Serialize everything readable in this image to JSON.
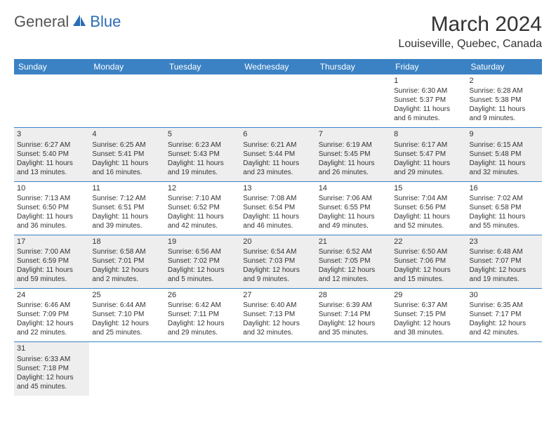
{
  "logo": {
    "part1": "General",
    "part2": "Blue"
  },
  "title": "March 2024",
  "location": "Louiseville, Quebec, Canada",
  "colors": {
    "header_bg": "#3b82c4",
    "header_text": "#ffffff",
    "shade_bg": "#eeeeee",
    "border": "#3b82c4",
    "brand_blue": "#2a6db5",
    "text": "#333333"
  },
  "weekdays": [
    "Sunday",
    "Monday",
    "Tuesday",
    "Wednesday",
    "Thursday",
    "Friday",
    "Saturday"
  ],
  "weeks": [
    {
      "shade": false,
      "days": [
        null,
        null,
        null,
        null,
        null,
        {
          "n": "1",
          "sunrise": "Sunrise: 6:30 AM",
          "sunset": "Sunset: 5:37 PM",
          "d1": "Daylight: 11 hours",
          "d2": "and 6 minutes."
        },
        {
          "n": "2",
          "sunrise": "Sunrise: 6:28 AM",
          "sunset": "Sunset: 5:38 PM",
          "d1": "Daylight: 11 hours",
          "d2": "and 9 minutes."
        }
      ]
    },
    {
      "shade": true,
      "days": [
        {
          "n": "3",
          "sunrise": "Sunrise: 6:27 AM",
          "sunset": "Sunset: 5:40 PM",
          "d1": "Daylight: 11 hours",
          "d2": "and 13 minutes."
        },
        {
          "n": "4",
          "sunrise": "Sunrise: 6:25 AM",
          "sunset": "Sunset: 5:41 PM",
          "d1": "Daylight: 11 hours",
          "d2": "and 16 minutes."
        },
        {
          "n": "5",
          "sunrise": "Sunrise: 6:23 AM",
          "sunset": "Sunset: 5:43 PM",
          "d1": "Daylight: 11 hours",
          "d2": "and 19 minutes."
        },
        {
          "n": "6",
          "sunrise": "Sunrise: 6:21 AM",
          "sunset": "Sunset: 5:44 PM",
          "d1": "Daylight: 11 hours",
          "d2": "and 23 minutes."
        },
        {
          "n": "7",
          "sunrise": "Sunrise: 6:19 AM",
          "sunset": "Sunset: 5:45 PM",
          "d1": "Daylight: 11 hours",
          "d2": "and 26 minutes."
        },
        {
          "n": "8",
          "sunrise": "Sunrise: 6:17 AM",
          "sunset": "Sunset: 5:47 PM",
          "d1": "Daylight: 11 hours",
          "d2": "and 29 minutes."
        },
        {
          "n": "9",
          "sunrise": "Sunrise: 6:15 AM",
          "sunset": "Sunset: 5:48 PM",
          "d1": "Daylight: 11 hours",
          "d2": "and 32 minutes."
        }
      ]
    },
    {
      "shade": false,
      "days": [
        {
          "n": "10",
          "sunrise": "Sunrise: 7:13 AM",
          "sunset": "Sunset: 6:50 PM",
          "d1": "Daylight: 11 hours",
          "d2": "and 36 minutes."
        },
        {
          "n": "11",
          "sunrise": "Sunrise: 7:12 AM",
          "sunset": "Sunset: 6:51 PM",
          "d1": "Daylight: 11 hours",
          "d2": "and 39 minutes."
        },
        {
          "n": "12",
          "sunrise": "Sunrise: 7:10 AM",
          "sunset": "Sunset: 6:52 PM",
          "d1": "Daylight: 11 hours",
          "d2": "and 42 minutes."
        },
        {
          "n": "13",
          "sunrise": "Sunrise: 7:08 AM",
          "sunset": "Sunset: 6:54 PM",
          "d1": "Daylight: 11 hours",
          "d2": "and 46 minutes."
        },
        {
          "n": "14",
          "sunrise": "Sunrise: 7:06 AM",
          "sunset": "Sunset: 6:55 PM",
          "d1": "Daylight: 11 hours",
          "d2": "and 49 minutes."
        },
        {
          "n": "15",
          "sunrise": "Sunrise: 7:04 AM",
          "sunset": "Sunset: 6:56 PM",
          "d1": "Daylight: 11 hours",
          "d2": "and 52 minutes."
        },
        {
          "n": "16",
          "sunrise": "Sunrise: 7:02 AM",
          "sunset": "Sunset: 6:58 PM",
          "d1": "Daylight: 11 hours",
          "d2": "and 55 minutes."
        }
      ]
    },
    {
      "shade": true,
      "days": [
        {
          "n": "17",
          "sunrise": "Sunrise: 7:00 AM",
          "sunset": "Sunset: 6:59 PM",
          "d1": "Daylight: 11 hours",
          "d2": "and 59 minutes."
        },
        {
          "n": "18",
          "sunrise": "Sunrise: 6:58 AM",
          "sunset": "Sunset: 7:01 PM",
          "d1": "Daylight: 12 hours",
          "d2": "and 2 minutes."
        },
        {
          "n": "19",
          "sunrise": "Sunrise: 6:56 AM",
          "sunset": "Sunset: 7:02 PM",
          "d1": "Daylight: 12 hours",
          "d2": "and 5 minutes."
        },
        {
          "n": "20",
          "sunrise": "Sunrise: 6:54 AM",
          "sunset": "Sunset: 7:03 PM",
          "d1": "Daylight: 12 hours",
          "d2": "and 9 minutes."
        },
        {
          "n": "21",
          "sunrise": "Sunrise: 6:52 AM",
          "sunset": "Sunset: 7:05 PM",
          "d1": "Daylight: 12 hours",
          "d2": "and 12 minutes."
        },
        {
          "n": "22",
          "sunrise": "Sunrise: 6:50 AM",
          "sunset": "Sunset: 7:06 PM",
          "d1": "Daylight: 12 hours",
          "d2": "and 15 minutes."
        },
        {
          "n": "23",
          "sunrise": "Sunrise: 6:48 AM",
          "sunset": "Sunset: 7:07 PM",
          "d1": "Daylight: 12 hours",
          "d2": "and 19 minutes."
        }
      ]
    },
    {
      "shade": false,
      "days": [
        {
          "n": "24",
          "sunrise": "Sunrise: 6:46 AM",
          "sunset": "Sunset: 7:09 PM",
          "d1": "Daylight: 12 hours",
          "d2": "and 22 minutes."
        },
        {
          "n": "25",
          "sunrise": "Sunrise: 6:44 AM",
          "sunset": "Sunset: 7:10 PM",
          "d1": "Daylight: 12 hours",
          "d2": "and 25 minutes."
        },
        {
          "n": "26",
          "sunrise": "Sunrise: 6:42 AM",
          "sunset": "Sunset: 7:11 PM",
          "d1": "Daylight: 12 hours",
          "d2": "and 29 minutes."
        },
        {
          "n": "27",
          "sunrise": "Sunrise: 6:40 AM",
          "sunset": "Sunset: 7:13 PM",
          "d1": "Daylight: 12 hours",
          "d2": "and 32 minutes."
        },
        {
          "n": "28",
          "sunrise": "Sunrise: 6:39 AM",
          "sunset": "Sunset: 7:14 PM",
          "d1": "Daylight: 12 hours",
          "d2": "and 35 minutes."
        },
        {
          "n": "29",
          "sunrise": "Sunrise: 6:37 AM",
          "sunset": "Sunset: 7:15 PM",
          "d1": "Daylight: 12 hours",
          "d2": "and 38 minutes."
        },
        {
          "n": "30",
          "sunrise": "Sunrise: 6:35 AM",
          "sunset": "Sunset: 7:17 PM",
          "d1": "Daylight: 12 hours",
          "d2": "and 42 minutes."
        }
      ]
    },
    {
      "shade": true,
      "days": [
        {
          "n": "31",
          "sunrise": "Sunrise: 6:33 AM",
          "sunset": "Sunset: 7:18 PM",
          "d1": "Daylight: 12 hours",
          "d2": "and 45 minutes."
        },
        null,
        null,
        null,
        null,
        null,
        null
      ]
    }
  ]
}
